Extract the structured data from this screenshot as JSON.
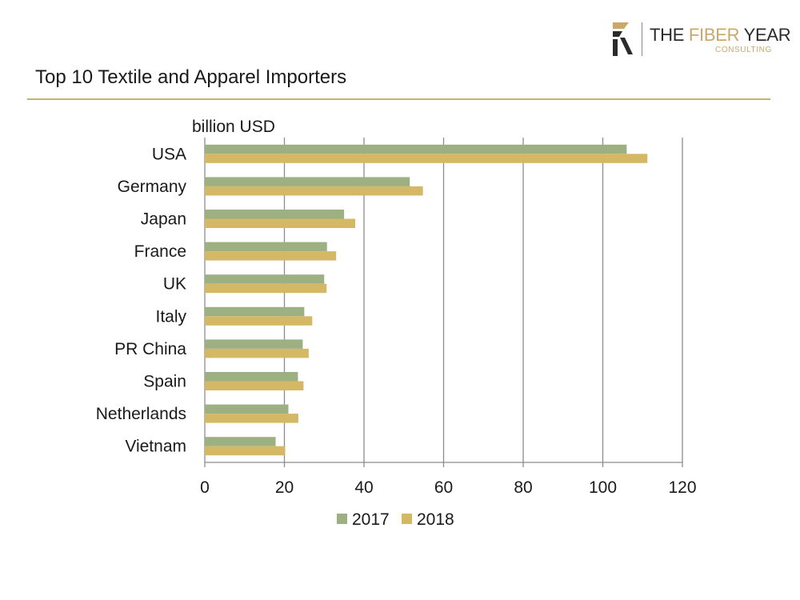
{
  "logo": {
    "the": "THE",
    "fiber": "FIBER",
    "year": "YEAR",
    "sub": "CONSULTING"
  },
  "colors": {
    "series_2017": "#9cb082",
    "series_2018": "#d4b865",
    "rule": "#c9b06b",
    "grid": "#8c8c8c",
    "brand_gold": "#c9a86a"
  },
  "chart_data": {
    "type": "bar",
    "orientation": "horizontal",
    "title": "Top 10 Textile and Apparel Importers",
    "ylabel": "billion USD",
    "xlabel": "",
    "categories": [
      "USA",
      "Germany",
      "Japan",
      "France",
      "UK",
      "Italy",
      "PR China",
      "Spain",
      "Netherlands",
      "Vietnam"
    ],
    "series": [
      {
        "name": "2017",
        "values": [
          106,
          51.5,
          35,
          30.7,
          30,
          25,
          24.6,
          23.4,
          21,
          17.8
        ]
      },
      {
        "name": "2018",
        "values": [
          111.2,
          54.8,
          37.8,
          33,
          30.6,
          27,
          26.1,
          24.8,
          23.5,
          20.2
        ]
      }
    ],
    "xlim": [
      0,
      120
    ],
    "xticks": [
      "0",
      "20",
      "40",
      "60",
      "80",
      "100",
      "120"
    ],
    "grid": true,
    "legend": "bottom"
  }
}
